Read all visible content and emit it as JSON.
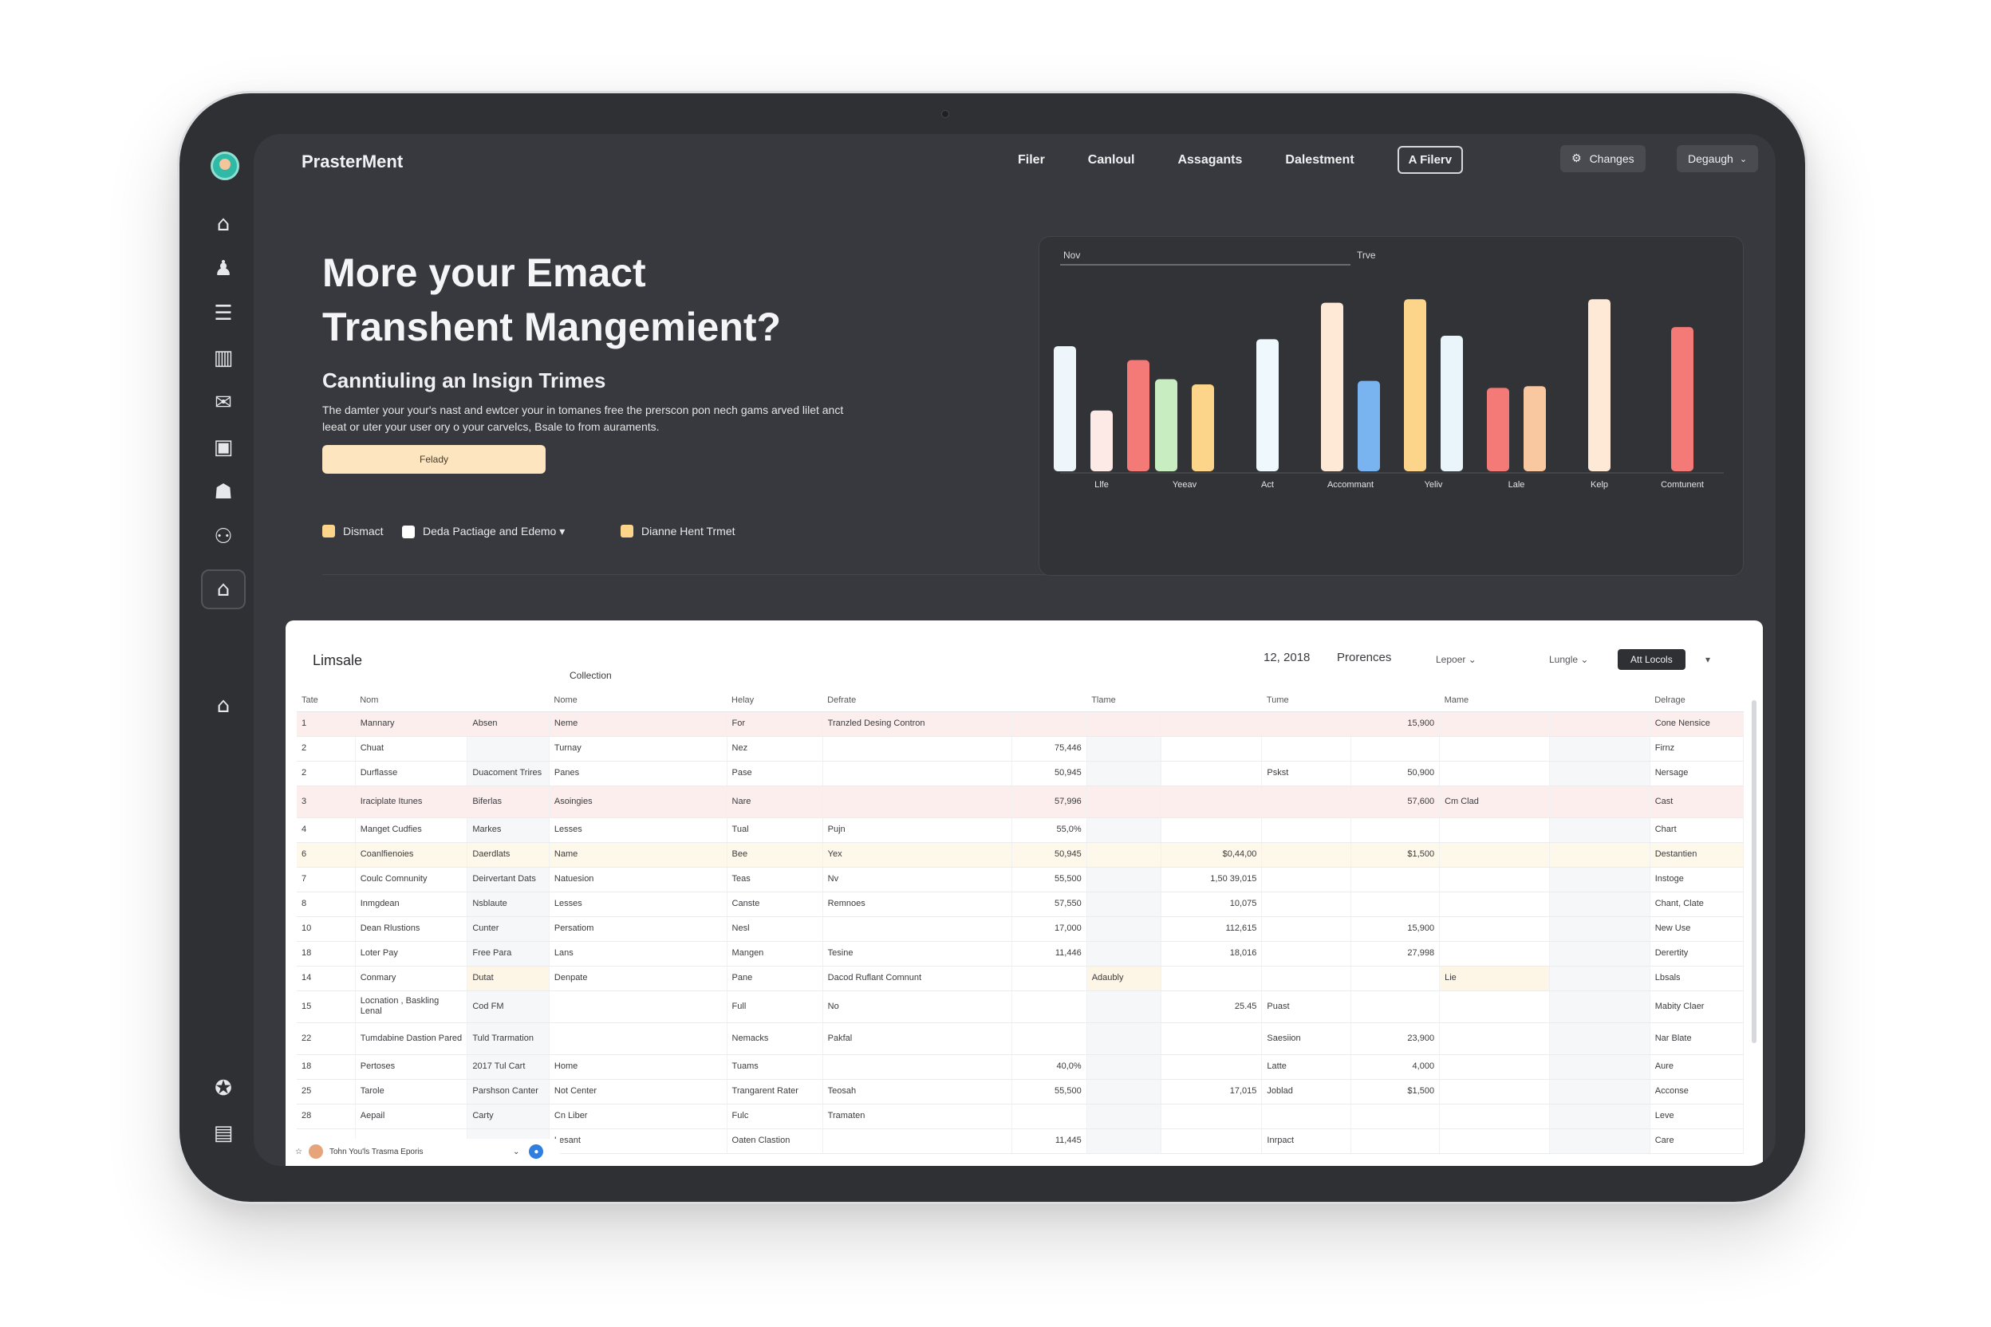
{
  "app": {
    "brand": "PrasterMent"
  },
  "nav": {
    "items": [
      "Filer",
      "Canloul",
      "Assagants",
      "Dalestment"
    ],
    "button": "A Filerv"
  },
  "toolbar": {
    "changes_label": "Changes",
    "user_label": "Degaugh"
  },
  "hero": {
    "title_line1": "More your Emact",
    "title_line2": "Transhent Mangemient?",
    "subtitle": "Canntiuling an Insign Trimes",
    "desc_line1": "The damter your your's nast and ewtcer your in tomanes free the prerscon pon nech gams arved lilet anct",
    "desc_line2": "leeat or uter your user ory o your carvelcs, Bsale to from auraments.",
    "cta_label": "Felady"
  },
  "legend": [
    {
      "label": "Dismact",
      "color": "#fcd58a"
    },
    {
      "label": "Deda Pactiage and Edemo ▾",
      "color": "#ffffff"
    },
    {
      "label": "Dianne Hent Trmet",
      "color": "#fcd58a"
    }
  ],
  "chart_data": {
    "type": "bar",
    "tabs": [
      "Nov",
      "Trve"
    ],
    "categories": [
      "Llfe",
      "Yeeav",
      "Act",
      "Accommant",
      "Yeliv",
      "Lale",
      "Kelp",
      "Comtunent"
    ],
    "bars": [
      {
        "group": 0,
        "value": 72,
        "color": "#eef6fb"
      },
      {
        "group": 0,
        "value": 35,
        "color": "#fde9e6"
      },
      {
        "group": 0,
        "value": 64,
        "color": "#f37a77"
      },
      {
        "group": 1,
        "value": 53,
        "color": "#c7edc0"
      },
      {
        "group": 1,
        "value": 50,
        "color": "#fcd58a"
      },
      {
        "group": 2,
        "value": 76,
        "color": "#eef8fd"
      },
      {
        "group": 3,
        "value": 97,
        "color": "#fde9d6"
      },
      {
        "group": 3,
        "value": 52,
        "color": "#79b4f0"
      },
      {
        "group": 4,
        "value": 99,
        "color": "#fcd58a"
      },
      {
        "group": 4,
        "value": 78,
        "color": "#eaf5fb"
      },
      {
        "group": 5,
        "value": 48,
        "color": "#f37a77"
      },
      {
        "group": 5,
        "value": 49,
        "color": "#f9c7a0"
      },
      {
        "group": 6,
        "value": 99,
        "color": "#fde9d6"
      },
      {
        "group": 7,
        "value": 83,
        "color": "#f37a77"
      }
    ],
    "ylim": [
      0,
      110
    ],
    "grid": false
  },
  "table": {
    "title": "Limsale",
    "date": "12, 2018",
    "meta1": "Prorences",
    "meta2": "Lepoer ⌄",
    "meta3": "Lungle ⌄",
    "pill": "Att Locols",
    "pill_caret": "▾",
    "collection": "Collection",
    "headers": [
      "Tate",
      "Nom",
      "",
      "Nome",
      "Helay",
      "Defrate",
      "",
      "Tlame",
      "",
      "Tume",
      "",
      "Mame",
      "",
      "Delrage"
    ],
    "rows": [
      {
        "c": [
          "1",
          "Mannary",
          "Absen",
          "Neme",
          "For",
          "Tranzled Desing Contron",
          "",
          "",
          "",
          "",
          "15,900",
          "",
          "",
          "Cone Nensice"
        ],
        "cls": "pink"
      },
      {
        "c": [
          "2",
          "Chuat",
          "",
          "Turnay",
          "Nez",
          "",
          "75,446",
          "",
          "",
          "",
          "",
          "",
          "",
          "Firnz"
        ],
        "cls": ""
      },
      {
        "c": [
          "2",
          "Durflasse",
          "Duacoment Trires",
          "Panes",
          "Pase",
          "",
          "50,945",
          "",
          "",
          "Pskst",
          "50,900",
          "",
          "",
          "Nersage"
        ],
        "cls": ""
      },
      {
        "c": [
          "3",
          "Iraciplate Itunes",
          "Biferlas",
          "Asoingies",
          "Nare",
          "",
          "57,996",
          "",
          "",
          "",
          "57,600",
          "Cm Clad",
          "",
          "Cast"
        ],
        "cls": "pink tall"
      },
      {
        "c": [
          "4",
          "Manget Cudfies",
          "Markes",
          "Lesses",
          "Tual",
          "Pujn",
          "55,0%",
          "",
          "",
          "",
          "",
          "",
          "",
          "Chart"
        ],
        "cls": ""
      },
      {
        "c": [
          "6",
          "Coanlfienoies",
          "Daerdlats",
          "Name",
          "Bee",
          "Yex",
          "50,945",
          "",
          "$0,44,00",
          "",
          "$1,500",
          "",
          "",
          "Destantien"
        ],
        "cls": "yellow"
      },
      {
        "c": [
          "7",
          "Coulc Comnunity",
          "Deirvertant Dats",
          "Natuesion",
          "Teas",
          "Nv",
          "55,500",
          "",
          "1,50 39,015",
          "",
          "",
          "",
          "",
          "Instoge"
        ],
        "cls": ""
      },
      {
        "c": [
          "8",
          "Inmgdean",
          "Nsblaute",
          "Lesses",
          "Canste",
          "Remnoes",
          "57,550",
          "",
          "10,075",
          "",
          "",
          "",
          "",
          "Chant, Clate"
        ],
        "cls": ""
      },
      {
        "c": [
          "10",
          "Dean Rlustions",
          "Cunter",
          "Persatiom",
          "Nesl",
          "",
          "17,000",
          "",
          "112,615",
          "",
          "15,900",
          "",
          "",
          "New Use"
        ],
        "cls": ""
      },
      {
        "c": [
          "18",
          "Loter Pay",
          "Free Para",
          "Lans",
          "Mangen",
          "Tesine",
          "11,446",
          "",
          "18,016",
          "",
          "27,998",
          "",
          "",
          "Derertity"
        ],
        "cls": ""
      },
      {
        "c": [
          "14",
          "Conmary",
          "Dutat",
          "Denpate",
          "Pane",
          "Dacod Ruflant Comnunt",
          "",
          "Adaubly",
          "",
          "",
          "",
          "Lie",
          "",
          "Lbsals"
        ],
        "cls": "yellowcol"
      },
      {
        "c": [
          "15",
          "Locnation , Baskling Lenal",
          "Cod FM",
          "",
          "Full",
          "No",
          "",
          "",
          "25.45",
          "Puast",
          "",
          "",
          "",
          "Mabity Claer"
        ],
        "cls": "tall"
      },
      {
        "c": [
          "22",
          "Tumdabine Dastion Pared",
          "Tuld Trarmation",
          "",
          "Nemacks",
          "Pakfal",
          "",
          "",
          "",
          "Saesiion",
          "23,900",
          "",
          "",
          "Nar Blate"
        ],
        "cls": "tall"
      },
      {
        "c": [
          "18",
          "Pertoses",
          "2017 Tul Cart",
          "Home",
          "Tuams",
          "",
          "40,0%",
          "",
          "",
          "Latte",
          "4,000",
          "",
          "",
          "Aure"
        ],
        "cls": ""
      },
      {
        "c": [
          "25",
          "Tarole",
          "Parshson Canter",
          "Not Center",
          "Trangarent Rater",
          "Teosah",
          "55,500",
          "",
          "17,015",
          "Joblad",
          "$1,500",
          "",
          "",
          "Acconse"
        ],
        "cls": ""
      },
      {
        "c": [
          "28",
          "Aepail",
          "Carty",
          "Cn Liber",
          "Fulc",
          "Tramaten",
          "",
          "",
          "",
          "",
          "",
          "",
          "",
          "Leve"
        ],
        "cls": ""
      },
      {
        "c": [
          "",
          "",
          "",
          "Lesant",
          "Oaten Clastion",
          "",
          "11,445",
          "",
          "",
          "Inrpact",
          "",
          "",
          "",
          "Care"
        ],
        "cls": ""
      }
    ]
  },
  "bottom": {
    "label": "Tohn You'ls Trasma Eporis",
    "badge": "●"
  },
  "rail_icons": [
    "home-icon",
    "users-icon",
    "list-icon",
    "books-icon",
    "mail-icon",
    "report-icon",
    "team-icon",
    "network-icon",
    "building-icon",
    "house-icon",
    "settings-icon",
    "archive-icon"
  ]
}
